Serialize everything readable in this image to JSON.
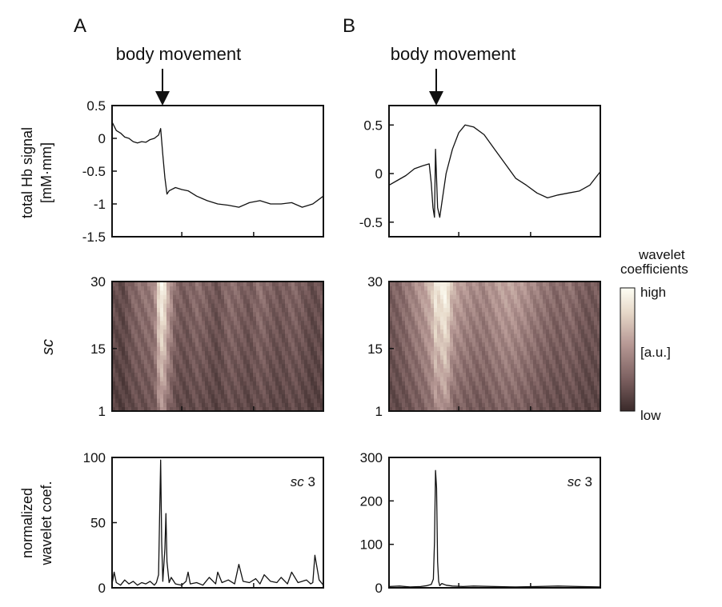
{
  "panel_labels": {
    "a": "A",
    "b": "B"
  },
  "annotations": {
    "event_a": "body movement",
    "event_b": "body movement"
  },
  "row_labels": {
    "signal_line1": "total Hb signal",
    "signal_line2": "[mM·mm]",
    "scale": "sc",
    "norm_line1": "normalized",
    "norm_line2": "wavelet coef."
  },
  "colorbar": {
    "title_line1": "wavelet",
    "title_line2": "coefficients",
    "high": "high",
    "mid": "[a.u.]",
    "low": "low",
    "colors": [
      "#3a2a2a",
      "#7a5e5e",
      "#b89a96",
      "#e6d8c8",
      "#fefef4"
    ]
  },
  "chart_data": [
    {
      "id": "A-signal",
      "type": "line",
      "ylabel": "total Hb signal [mM·mm]",
      "ylim": [
        -1.5,
        0.5
      ],
      "yticks": [
        0.5,
        0,
        -0.5,
        -1,
        -1.5
      ],
      "ytick_labels": [
        "0.5",
        "0",
        "-0.5",
        "-1",
        "-1.5"
      ],
      "xlim": [
        0,
        100
      ],
      "xticks": [
        33,
        67
      ],
      "event_x": 23,
      "series": [
        {
          "x": [
            0,
            2,
            4,
            6,
            8,
            10,
            12,
            14,
            16,
            18,
            20,
            22,
            23,
            24,
            25,
            26,
            27,
            30,
            33,
            36,
            40,
            45,
            50,
            55,
            60,
            65,
            70,
            75,
            80,
            85,
            90,
            95,
            100
          ],
          "values": [
            0.25,
            0.12,
            0.08,
            0.02,
            0.0,
            -0.05,
            -0.07,
            -0.05,
            -0.06,
            -0.02,
            0.0,
            0.05,
            0.15,
            -0.25,
            -0.6,
            -0.85,
            -0.8,
            -0.75,
            -0.78,
            -0.8,
            -0.88,
            -0.95,
            -1.0,
            -1.02,
            -1.05,
            -0.98,
            -0.95,
            -1.0,
            -1.0,
            -0.98,
            -1.05,
            -1.0,
            -0.88
          ]
        }
      ]
    },
    {
      "id": "B-signal",
      "type": "line",
      "ylim": [
        -0.65,
        0.7
      ],
      "yticks": [
        0.5,
        0,
        -0.5
      ],
      "ytick_labels": [
        "0.5",
        "0",
        "-0.5"
      ],
      "xlim": [
        0,
        100
      ],
      "xticks": [
        33,
        67
      ],
      "event_x": 22,
      "series": [
        {
          "x": [
            0,
            4,
            8,
            12,
            16,
            19,
            20,
            20.8,
            21.5,
            22,
            23,
            24,
            25,
            27,
            30,
            33,
            36,
            40,
            45,
            50,
            55,
            60,
            65,
            70,
            75,
            80,
            85,
            90,
            95,
            100
          ],
          "values": [
            -0.12,
            -0.07,
            -0.02,
            0.05,
            0.08,
            0.1,
            -0.1,
            -0.35,
            -0.45,
            0.25,
            -0.35,
            -0.45,
            -0.3,
            0.0,
            0.25,
            0.42,
            0.5,
            0.48,
            0.4,
            0.25,
            0.1,
            -0.05,
            -0.12,
            -0.2,
            -0.25,
            -0.22,
            -0.2,
            -0.18,
            -0.12,
            0.02
          ]
        }
      ]
    },
    {
      "id": "A-scalogram",
      "type": "heatmap",
      "ylabel": "sc",
      "ylim": [
        1,
        30
      ],
      "yticks": [
        30,
        15,
        1
      ],
      "ytick_labels": [
        "30",
        "15",
        "1"
      ],
      "xlim": [
        0,
        100
      ],
      "xticks": [
        33,
        67
      ],
      "x_columns": [
        0,
        5,
        10,
        15,
        20,
        22,
        24,
        26,
        30,
        35,
        40,
        45,
        50,
        55,
        60,
        65,
        70,
        75,
        80,
        85,
        90,
        95,
        100
      ],
      "column_intensity": [
        0.15,
        0.1,
        0.25,
        0.3,
        0.35,
        0.75,
        0.95,
        0.6,
        0.25,
        0.2,
        0.28,
        0.22,
        0.15,
        0.28,
        0.25,
        0.18,
        0.3,
        0.22,
        0.18,
        0.25,
        0.2,
        0.12,
        0.18
      ]
    },
    {
      "id": "B-scalogram",
      "type": "heatmap",
      "ylim": [
        1,
        30
      ],
      "yticks": [
        30,
        15,
        1
      ],
      "ytick_labels": [
        "30",
        "15",
        "1"
      ],
      "xlim": [
        0,
        100
      ],
      "xticks": [
        33,
        67
      ],
      "x_columns": [
        0,
        5,
        10,
        15,
        20,
        22,
        24,
        26,
        28,
        30,
        35,
        40,
        45,
        50,
        55,
        60,
        65,
        70,
        75,
        80,
        85,
        90,
        95,
        100
      ],
      "column_intensity": [
        0.2,
        0.25,
        0.35,
        0.45,
        0.6,
        0.85,
        0.75,
        0.95,
        0.8,
        0.55,
        0.45,
        0.4,
        0.38,
        0.45,
        0.5,
        0.48,
        0.42,
        0.35,
        0.3,
        0.25,
        0.3,
        0.22,
        0.18,
        0.2
      ]
    },
    {
      "id": "A-normalized",
      "type": "line",
      "ylabel": "normalized wavelet coef.",
      "annotation": "sc 3",
      "ylim": [
        0,
        100
      ],
      "yticks": [
        100,
        50,
        0
      ],
      "ytick_labels": [
        "100",
        "50",
        "0"
      ],
      "xlim": [
        0,
        100
      ],
      "xticks": [
        33,
        67
      ],
      "series": [
        {
          "x": [
            0,
            1,
            2,
            4,
            6,
            8,
            10,
            12,
            14,
            16,
            18,
            20,
            21,
            22,
            22.5,
            23,
            23.5,
            24,
            25,
            25.5,
            26,
            27,
            28,
            30,
            33,
            35,
            36,
            37,
            40,
            43,
            46,
            49,
            50,
            52,
            55,
            58,
            60,
            62,
            65,
            68,
            70,
            72,
            75,
            78,
            80,
            83,
            85,
            88,
            90,
            92,
            94,
            95,
            96,
            98,
            100
          ],
          "values": [
            3,
            12,
            4,
            2,
            6,
            3,
            5,
            2,
            4,
            3,
            5,
            2,
            4,
            10,
            55,
            98,
            35,
            5,
            30,
            57,
            20,
            4,
            8,
            3,
            2,
            5,
            12,
            3,
            4,
            2,
            8,
            3,
            12,
            4,
            6,
            3,
            18,
            5,
            4,
            7,
            3,
            10,
            5,
            4,
            8,
            3,
            12,
            4,
            5,
            6,
            3,
            4,
            25,
            6,
            2
          ]
        }
      ]
    },
    {
      "id": "B-normalized",
      "type": "line",
      "annotation": "sc 3",
      "ylim": [
        0,
        300
      ],
      "yticks": [
        300,
        200,
        100,
        0
      ],
      "ytick_labels": [
        "300",
        "200",
        "100",
        "0"
      ],
      "xlim": [
        0,
        100
      ],
      "xticks": [
        33,
        67
      ],
      "series": [
        {
          "x": [
            0,
            5,
            10,
            15,
            18,
            20,
            21,
            21.5,
            22,
            22.5,
            23,
            23.5,
            24,
            25,
            27,
            30,
            35,
            40,
            50,
            60,
            70,
            80,
            90,
            100
          ],
          "values": [
            3,
            4,
            2,
            3,
            5,
            8,
            20,
            105,
            270,
            230,
            60,
            15,
            5,
            10,
            6,
            4,
            3,
            4,
            3,
            2,
            3,
            4,
            3,
            2
          ]
        }
      ]
    }
  ]
}
